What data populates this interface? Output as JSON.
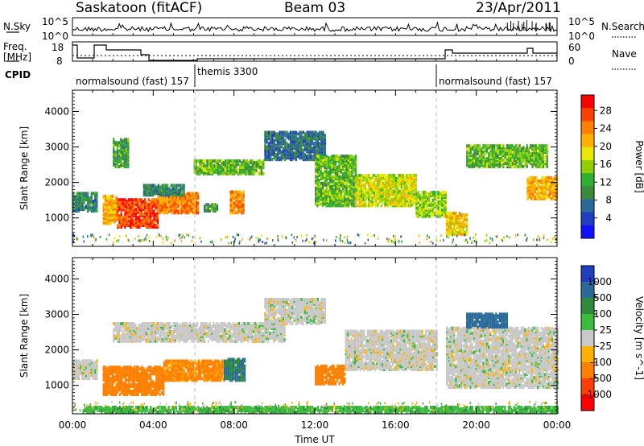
{
  "header": {
    "title": "Saskatoon (fitACF)",
    "beam": "Beam 03",
    "date": "23/Apr/2011"
  },
  "strip": {
    "nsky_label": "N.Sky",
    "nsky_ticks": [
      "10^5",
      "10^0"
    ],
    "nsearch_label": "N.Search",
    "nsearch_ticks": [
      "10^5",
      "10^0"
    ],
    "freq_label_1": "Freq.",
    "freq_label_2": "[MHz]",
    "freq_ticks": [
      "18",
      "8"
    ],
    "nave_label": "Nave",
    "nave_ticks": [
      "60",
      "0"
    ],
    "cpid_label": "CPID",
    "cpid_segments": [
      "normalsound (fast) 157",
      "themis 3300",
      "normalsound (fast) 157"
    ]
  },
  "colorbar_power": {
    "label": "Power [dB]",
    "ticks": [
      "28",
      "24",
      "20",
      "16",
      "12",
      "8",
      "4"
    ],
    "colors": [
      "#ff0000",
      "#ff4000",
      "#ff8000",
      "#ffb000",
      "#e8e800",
      "#90d000",
      "#30b030",
      "#3c8a3c",
      "#2a6a9a",
      "#1f3fc0",
      "#1010ff"
    ]
  },
  "colorbar_velocity": {
    "label": "Velocity [m s^-1]",
    "ticks": [
      "1000",
      "500",
      "100",
      "25",
      "-25",
      "-100",
      "-500",
      "-1000"
    ],
    "colors": [
      "#1f3fc0",
      "#2a6a9a",
      "#2e8a3c",
      "#3cbc3c",
      "#c8c8c8",
      "#ffb000",
      "#ff8000",
      "#ff4000",
      "#ff0000"
    ]
  },
  "chart_data": [
    {
      "type": "heatmap",
      "title": "",
      "xlabel": "Time UT",
      "ylabel": "Slant Range [km]",
      "variable": "Power [dB]",
      "x_ticks": [
        "00:00",
        "04:00",
        "08:00",
        "12:00",
        "16:00",
        "20:00",
        "00:00"
      ],
      "y_ticks": [
        1000,
        2000,
        3000,
        4000
      ],
      "xlim": [
        0,
        24
      ],
      "ylim": [
        200,
        4600
      ],
      "bands": [
        {
          "t0": 0.0,
          "t1": 1.2,
          "r0": 1150,
          "r1": 1650,
          "v": 10
        },
        {
          "t0": 1.5,
          "t1": 2.2,
          "r0": 800,
          "r1": 1600,
          "v": 22
        },
        {
          "t0": 2.0,
          "t1": 2.8,
          "r0": 2400,
          "r1": 3200,
          "v": 12
        },
        {
          "t0": 2.2,
          "t1": 4.2,
          "r0": 700,
          "r1": 1500,
          "v": 27
        },
        {
          "t0": 4.2,
          "t1": 6.2,
          "r0": 1100,
          "r1": 1650,
          "v": 24
        },
        {
          "t0": 3.5,
          "t1": 5.5,
          "r0": 1600,
          "r1": 1900,
          "v": 10
        },
        {
          "t0": 6.5,
          "t1": 7.2,
          "r0": 1150,
          "r1": 1350,
          "v": 12
        },
        {
          "t0": 7.8,
          "t1": 8.5,
          "r0": 1100,
          "r1": 1700,
          "v": 24
        },
        {
          "t0": 6.0,
          "t1": 9.5,
          "r0": 2200,
          "r1": 2600,
          "v": 14
        },
        {
          "t0": 9.5,
          "t1": 12.5,
          "r0": 2600,
          "r1": 3400,
          "v": 8
        },
        {
          "t0": 12.0,
          "t1": 14.0,
          "r0": 1300,
          "r1": 2700,
          "v": 14
        },
        {
          "t0": 14.0,
          "t1": 17.0,
          "r0": 1300,
          "r1": 2200,
          "v": 18
        },
        {
          "t0": 17.0,
          "t1": 18.5,
          "r0": 1000,
          "r1": 1700,
          "v": 16
        },
        {
          "t0": 18.5,
          "t1": 19.5,
          "r0": 500,
          "r1": 1100,
          "v": 20
        },
        {
          "t0": 19.5,
          "t1": 23.5,
          "r0": 2400,
          "r1": 3000,
          "v": 14
        },
        {
          "t0": 22.5,
          "t1": 24.0,
          "r0": 1500,
          "r1": 2100,
          "v": 22
        }
      ]
    },
    {
      "type": "heatmap",
      "title": "",
      "xlabel": "Time UT",
      "ylabel": "Slant Range [km]",
      "variable": "Velocity [m s^-1]",
      "x_ticks": [
        "00:00",
        "04:00",
        "08:00",
        "12:00",
        "16:00",
        "20:00",
        "00:00"
      ],
      "y_ticks": [
        1000,
        2000,
        3000,
        4000
      ],
      "xlim": [
        0,
        24
      ],
      "ylim": [
        200,
        4600
      ],
      "bands": [
        {
          "t0": 0.0,
          "t1": 1.2,
          "r0": 1150,
          "r1": 1650,
          "v": 0
        },
        {
          "t0": 1.5,
          "t1": 4.5,
          "r0": 700,
          "r1": 1500,
          "v": -300
        },
        {
          "t0": 4.5,
          "t1": 7.5,
          "r0": 1100,
          "r1": 1650,
          "v": -120
        },
        {
          "t0": 7.5,
          "t1": 8.5,
          "r0": 1100,
          "r1": 1700,
          "v": 300
        },
        {
          "t0": 2.0,
          "t1": 10.5,
          "r0": 2200,
          "r1": 2700,
          "v": 0
        },
        {
          "t0": 9.5,
          "t1": 12.5,
          "r0": 2700,
          "r1": 3400,
          "v": 0
        },
        {
          "t0": 12.0,
          "t1": 13.5,
          "r0": 1000,
          "r1": 1500,
          "v": -400
        },
        {
          "t0": 13.5,
          "t1": 18.0,
          "r0": 1400,
          "r1": 2500,
          "v": 0
        },
        {
          "t0": 18.5,
          "t1": 24.0,
          "r0": 900,
          "r1": 2600,
          "v": 0
        },
        {
          "t0": 19.5,
          "t1": 21.5,
          "r0": 2600,
          "r1": 3000,
          "v": 600
        },
        {
          "t0": 0.5,
          "t1": 24.0,
          "r0": 200,
          "r1": 350,
          "v": 60
        }
      ]
    }
  ]
}
